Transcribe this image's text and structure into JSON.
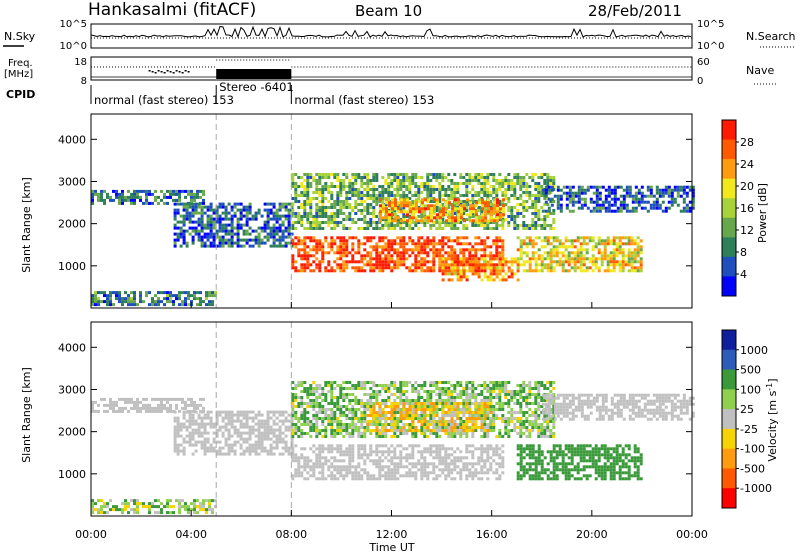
{
  "header": {
    "site": "Hankasalmi (fitACF)",
    "beam": "Beam 10",
    "date": "28/Feb/2011"
  },
  "top_panels": {
    "nsky_label": "N.Sky",
    "nsky_ticks": [
      "10^5",
      "10^0"
    ],
    "nsearch_label": "N.Search",
    "nsearch_ticks": [
      "10^5",
      "10^0"
    ],
    "freq_label_1": "Freq.",
    "freq_label_2": "[MHz]",
    "freq_ticks": [
      "18",
      "8"
    ],
    "nave_label": "Nave",
    "nave_ticks": [
      "60",
      "0"
    ],
    "cpid_label": "CPID",
    "cpid_segments": [
      {
        "label": "normal (fast stereo) 153",
        "start_hour": 0,
        "end_hour": 5
      },
      {
        "label": "Stereo -6401",
        "start_hour": 5,
        "end_hour": 8
      },
      {
        "label": "normal (fast stereo) 153",
        "start_hour": 8,
        "end_hour": 24
      }
    ]
  },
  "chart_data": [
    {
      "type": "heatmap",
      "quantity": "Power",
      "ylabel": "Slant Range [km]",
      "ylim": [
        0,
        4600
      ],
      "yticks": [
        "4000",
        "3000",
        "2000",
        "1000"
      ],
      "xlim_hours": [
        0,
        24
      ],
      "colorbar": {
        "label": "Power [dB]",
        "ticks": [
          "28",
          "24",
          "20",
          "16",
          "12",
          "8",
          "4"
        ],
        "colors": [
          "#0000ff",
          "#1f4fbf",
          "#2e7f5a",
          "#66a84b",
          "#a8d23a",
          "#f2e81e",
          "#ff9b0f",
          "#ff5a00",
          "#ff1a00"
        ]
      },
      "echo_regions": [
        {
          "start_hour": 0.0,
          "end_hour": 4.5,
          "range_low": 2500,
          "range_high": 2800,
          "level_db": 9
        },
        {
          "start_hour": 3.3,
          "end_hour": 8.0,
          "range_low": 1500,
          "range_high": 2500,
          "level_db": 8
        },
        {
          "start_hour": 8.0,
          "end_hour": 16.5,
          "range_low": 900,
          "range_high": 1700,
          "level_db": 28
        },
        {
          "start_hour": 8.0,
          "end_hour": 18.5,
          "range_low": 1900,
          "range_high": 3200,
          "level_db": 14
        },
        {
          "start_hour": 11.5,
          "end_hour": 16.5,
          "range_low": 2100,
          "range_high": 2600,
          "level_db": 24
        },
        {
          "start_hour": 14.0,
          "end_hour": 17.0,
          "range_low": 700,
          "range_high": 1200,
          "level_db": 24
        },
        {
          "start_hour": 17.0,
          "end_hour": 22.0,
          "range_low": 900,
          "range_high": 1700,
          "level_db": 20
        },
        {
          "start_hour": 18.0,
          "end_hour": 24.0,
          "range_low": 2300,
          "range_high": 2900,
          "level_db": 8
        },
        {
          "start_hour": 0.0,
          "end_hour": 5.0,
          "range_low": 100,
          "range_high": 400,
          "level_db": 10
        }
      ]
    },
    {
      "type": "heatmap",
      "quantity": "Velocity",
      "ylabel": "Slant Range [km]",
      "ylim": [
        0,
        4600
      ],
      "yticks": [
        "4000",
        "3000",
        "2000",
        "1000"
      ],
      "xlim_hours": [
        0,
        24
      ],
      "colorbar": {
        "label": "Velocity [m s",
        "label_sup": "-1",
        "label_end": "]",
        "ticks": [
          "1000",
          "500",
          "100",
          "25",
          "-25",
          "-100",
          "-500",
          "-1000"
        ],
        "colors": [
          "#ff0000",
          "#ff5a00",
          "#ff9b0f",
          "#f5d400",
          "#c0c0c0",
          "#8fd14f",
          "#3a9a3a",
          "#2e5ab8",
          "#0f1f9e"
        ]
      },
      "echo_regions": [
        {
          "start_hour": 0.0,
          "end_hour": 4.5,
          "range_low": 2500,
          "range_high": 2800,
          "velocity": 0
        },
        {
          "start_hour": 3.3,
          "end_hour": 8.0,
          "range_low": 1500,
          "range_high": 2500,
          "velocity": 0
        },
        {
          "start_hour": 8.0,
          "end_hour": 16.5,
          "range_low": 900,
          "range_high": 1700,
          "velocity": 0
        },
        {
          "start_hour": 8.0,
          "end_hour": 18.5,
          "range_low": 1900,
          "range_high": 3200,
          "velocity": 80
        },
        {
          "start_hour": 11.0,
          "end_hour": 16.0,
          "range_low": 2000,
          "range_high": 2700,
          "velocity": -80
        },
        {
          "start_hour": 17.0,
          "end_hour": 22.0,
          "range_low": 900,
          "range_high": 1700,
          "velocity": 300
        },
        {
          "start_hour": 18.0,
          "end_hour": 24.0,
          "range_low": 2300,
          "range_high": 2900,
          "velocity": 0
        },
        {
          "start_hour": 0.0,
          "end_hour": 5.0,
          "range_low": 100,
          "range_high": 400,
          "velocity": 60
        }
      ]
    }
  ],
  "x_axis": {
    "ticks": [
      "00:00",
      "04:00",
      "08:00",
      "12:00",
      "16:00",
      "20:00",
      "00:00"
    ],
    "label": "Time UT"
  }
}
